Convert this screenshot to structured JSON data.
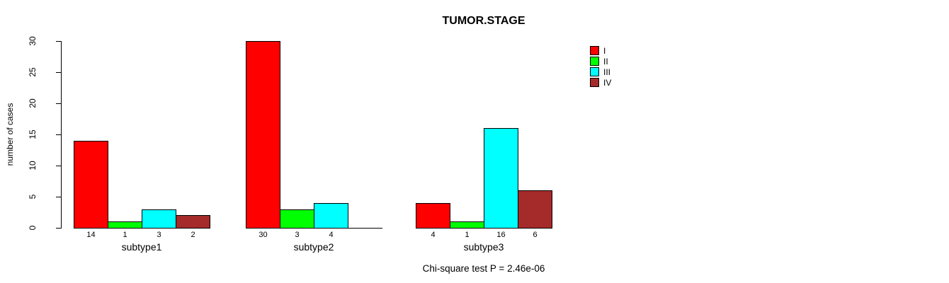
{
  "page": {
    "background": "#FFFFFF"
  },
  "chart_data": {
    "type": "bar",
    "title": "TUMOR.STAGE",
    "xlabel": "",
    "ylabel": "number of cases",
    "categories": [
      "subtype1",
      "subtype2",
      "subtype3"
    ],
    "series": [
      {
        "name": "I",
        "color": "#FF0000",
        "values": [
          14,
          30,
          4
        ]
      },
      {
        "name": "II",
        "color": "#00FF00",
        "values": [
          1,
          3,
          1
        ]
      },
      {
        "name": "III",
        "color": "#00FFFF",
        "values": [
          3,
          4,
          16
        ]
      },
      {
        "name": "IV",
        "color": "#A52A2A",
        "values": [
          2,
          0,
          6
        ]
      }
    ],
    "yticks": [
      0,
      5,
      10,
      15,
      20,
      25,
      30
    ],
    "ylim": [
      0,
      30
    ],
    "grid": false,
    "bar_value_labels_shown": true,
    "zero_value_labels_hidden": true,
    "legend_position": "top-right",
    "annotation": "Chi-square test P = 2.46e-06"
  }
}
